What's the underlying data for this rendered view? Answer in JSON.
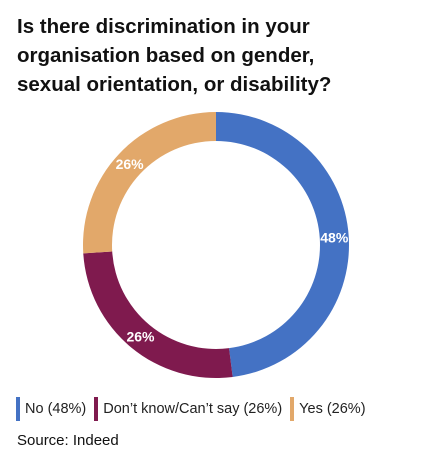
{
  "title_lines": [
    "Is there discrimination in your",
    "organisation based on gender,",
    "sexual orientation, or disability?"
  ],
  "chart_data": {
    "type": "pie",
    "title": "Is there discrimination in your organisation based on gender, sexual orientation, or disability?",
    "slices": [
      {
        "label": "No",
        "value": 48,
        "value_label": "48%",
        "color": "#4472C4",
        "legend": "No (48%)"
      },
      {
        "label": "Don't know/Can't say",
        "value": 26,
        "value_label": "26%",
        "color": "#7F1A4E",
        "legend": "Don’t know/Can’t say (26%)"
      },
      {
        "label": "Yes",
        "value": 26,
        "value_label": "26%",
        "color": "#E2A86A",
        "legend": "Yes (26%)"
      }
    ],
    "legend_position": "bottom"
  },
  "source": "Source: Indeed"
}
